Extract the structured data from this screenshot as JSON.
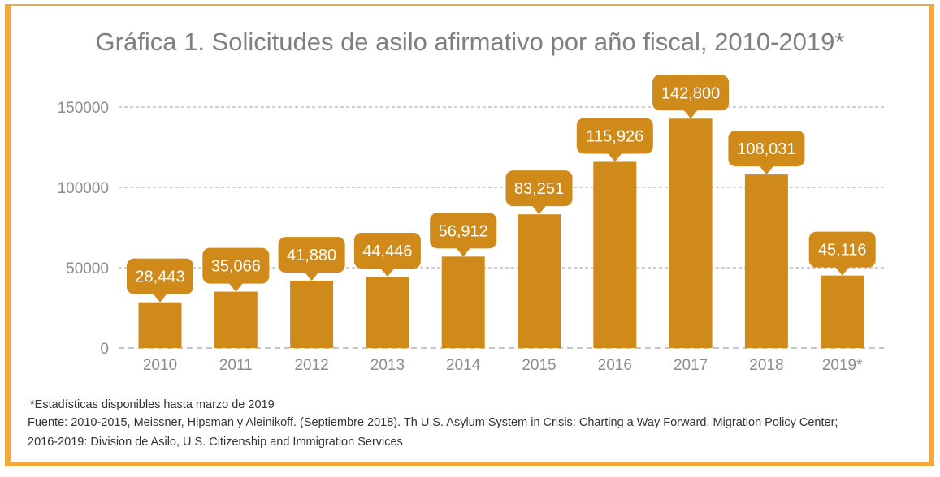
{
  "colors": {
    "frame": "#f2a93b",
    "bar": "#d08a1a",
    "grid": "#b3b3b3",
    "axis_text": "#8c8c8c",
    "label_text": "#ffffff"
  },
  "chart_data": {
    "type": "bar",
    "title": "Gráfica 1. Solicitudes de asilo afirmativo por año fiscal, 2010-2019*",
    "xlabel": "",
    "ylabel": "",
    "categories": [
      "2010",
      "2011",
      "2012",
      "2013",
      "2014",
      "2015",
      "2016",
      "2017",
      "2018",
      "2019*"
    ],
    "values": [
      28443,
      35066,
      41880,
      44446,
      56912,
      83251,
      115926,
      142800,
      108031,
      45116
    ],
    "data_labels": [
      "28,443",
      "35,066",
      "41,880",
      "44,446",
      "56,912",
      "83,251",
      "115,926",
      "142,800",
      "108,031",
      "45,116"
    ],
    "ylim": [
      0,
      150000
    ],
    "yticks": [
      0,
      50000,
      100000,
      150000
    ],
    "ytick_labels": [
      "0",
      "50000",
      "100000",
      "150000"
    ],
    "grid": true,
    "legend": "none"
  },
  "footnote": {
    "note": "*Estadísticas disponibles hasta marzo de 2019",
    "source_line1": "Fuente: 2010-2015, Meissner, Hipsman y Aleinikoff. (Septiembre 2018). Th U.S. Asylum System in Crisis: Charting a Way Forward. Migration Policy Center;",
    "source_line2": "2016-2019: Division de Asilo, U.S. Citizenship and Immigration Services"
  }
}
